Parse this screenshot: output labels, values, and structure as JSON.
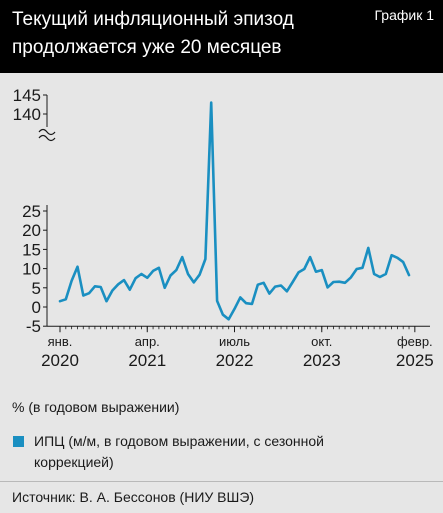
{
  "header": {
    "title": "Текущий инфляционный эпизод продолжается уже 20 месяцев",
    "tag": "График 1"
  },
  "note": "% (в годовом выражении)",
  "source": "Источник: В. А. Бессонов (НИУ ВШЭ)",
  "colors": {
    "line": "#1a8fc1",
    "header": "#000000",
    "background": "#e6e6e6"
  },
  "chart_data": {
    "type": "line",
    "title": "",
    "xlabel": "",
    "ylabel": "",
    "ylim": [
      -5,
      145
    ],
    "axis_break": "between 25 and 140",
    "y_ticks": [
      "145",
      "140",
      "25",
      "20",
      "15",
      "10",
      "5",
      "0",
      "-5"
    ],
    "x_tick_labels": [
      {
        "month": "янв.",
        "year": "2020",
        "index": 0
      },
      {
        "month": "апр.",
        "year": "2021",
        "index": 15
      },
      {
        "month": "июль",
        "year": "2022",
        "index": 30
      },
      {
        "month": "окт.",
        "year": "2023",
        "index": 45
      },
      {
        "month": "февр.",
        "year": "2025",
        "index": 61
      }
    ],
    "legend": {
      "position": "bottom-left",
      "label": "ИПЦ (м/м, в годовом выражении, с сезонной коррекцией)"
    },
    "grid": false,
    "series": [
      {
        "name": "ИПЦ (м/м, в годовом выражении, с сезонной коррекцией)",
        "start": "2020-01",
        "values": [
          1.5,
          2.0,
          6.8,
          10.5,
          3.0,
          3.6,
          5.4,
          5.2,
          1.5,
          4.3,
          5.9,
          7.0,
          4.5,
          7.5,
          8.6,
          7.6,
          9.4,
          10.2,
          5.0,
          8.2,
          9.6,
          13.0,
          8.6,
          6.4,
          8.4,
          12.5,
          143.0,
          1.6,
          -2.0,
          -3.2,
          -0.5,
          2.5,
          1.0,
          0.8,
          5.8,
          6.3,
          3.5,
          5.3,
          5.6,
          4.1,
          6.5,
          9.0,
          9.9,
          13.0,
          9.2,
          9.6,
          5.1,
          6.5,
          6.6,
          6.3,
          7.7,
          9.9,
          10.2,
          15.4,
          8.6,
          7.8,
          8.6,
          13.5,
          12.8,
          11.7,
          8.3
        ]
      }
    ]
  }
}
